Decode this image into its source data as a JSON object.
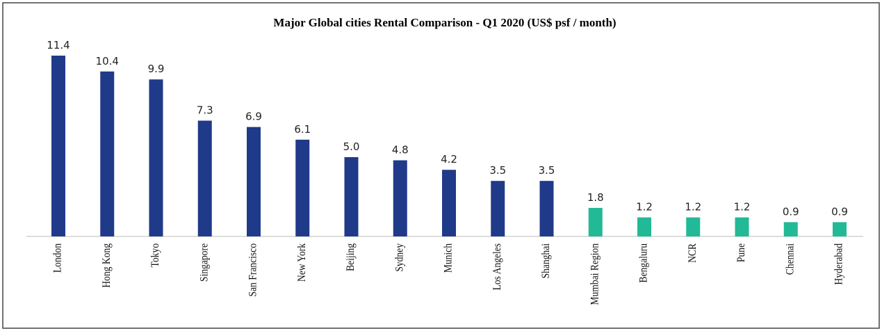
{
  "chart_data": {
    "type": "bar",
    "title": "Major  Global  cities Rental Comparison  - Q1 2020 (US$ psf / month)",
    "categories": [
      "London",
      "Hong Kong",
      "Tokyo",
      "Singapore",
      "San Francisco",
      "New York",
      "Beijing",
      "Sydney",
      "Munich",
      "Los Angeles",
      "Shanghai",
      "Mumbai Region",
      "Bengaluru",
      "NCR",
      "Pune",
      "Chennai",
      "Hyderabad"
    ],
    "values": [
      11.4,
      10.4,
      9.9,
      7.3,
      6.9,
      6.1,
      5.0,
      4.8,
      4.2,
      3.5,
      3.5,
      1.8,
      1.2,
      1.2,
      1.2,
      0.9,
      0.9
    ],
    "value_labels": [
      "11.4",
      "10.4",
      "9.9",
      "7.3",
      "6.9",
      "6.1",
      "5.0",
      "4.8",
      "4.2",
      "3.5",
      "3.5",
      "1.8",
      "1.2",
      "1.2",
      "1.2",
      "0.9",
      "0.9"
    ],
    "colors": [
      "#203a8a",
      "#203a8a",
      "#203a8a",
      "#203a8a",
      "#203a8a",
      "#203a8a",
      "#203a8a",
      "#203a8a",
      "#203a8a",
      "#203a8a",
      "#203a8a",
      "#22b996",
      "#22b996",
      "#22b996",
      "#22b996",
      "#22b996",
      "#22b996"
    ]
  }
}
